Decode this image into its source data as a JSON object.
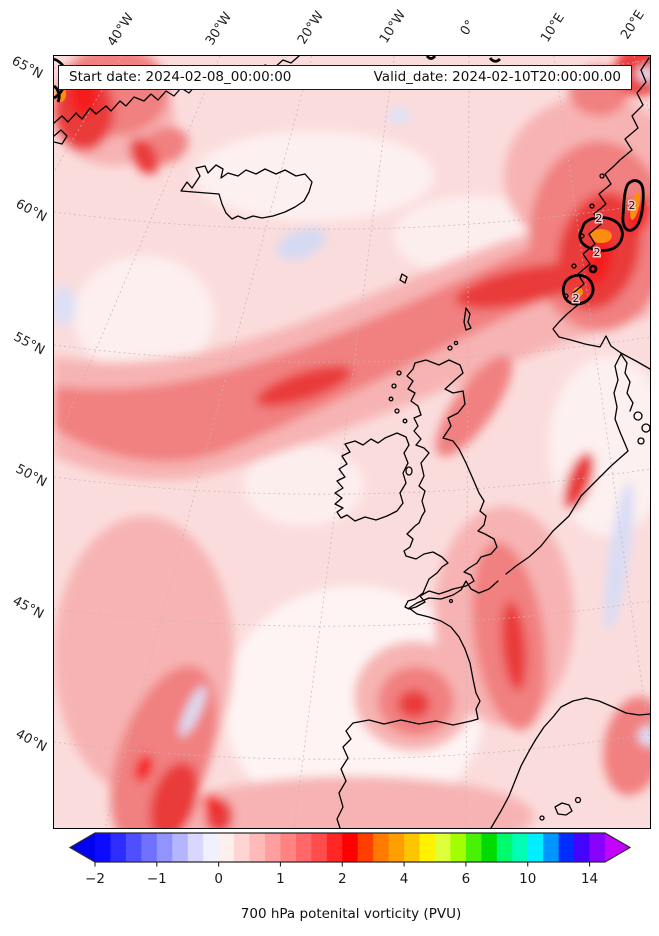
{
  "title_bar": {
    "start": "Start date: 2024-02-08_00:00:00",
    "valid": "Valid_date: 2024-02-10T20:00:00.00"
  },
  "caption": "700 hPa potenital vorticity (PVU)",
  "axes": {
    "lon_labels": [
      "40°W",
      "30°W",
      "20°W",
      "10°W",
      "0°",
      "10°E",
      "20°E"
    ],
    "lat_labels": [
      "65°N",
      "60°N",
      "55°N",
      "50°N",
      "45°N",
      "40°N"
    ]
  },
  "map": {
    "contour_value": "2",
    "contour_labels": [
      "2",
      "2",
      "2",
      "2"
    ],
    "field_colors": {
      "base_pink": "#fbdcdc",
      "pale": "#fdf0f0",
      "medium": "#f7b3b3",
      "red": "#f18080",
      "intense": "#ea3b3b",
      "brightest": "#f51f1f",
      "orange": "#fb8d0f",
      "negative_blue": "#d5d9f3",
      "coastline": "#000000",
      "graticule": "#c9b3b3"
    }
  },
  "colorbar": {
    "tick_labels": [
      "−2",
      "−1",
      "0",
      "1",
      "2",
      "4",
      "6",
      "10",
      "14"
    ],
    "tick_segment_indices": [
      0,
      4,
      8,
      12,
      16,
      20,
      24,
      28,
      32
    ],
    "segment_colors": [
      "#0b0bff",
      "#2d2dff",
      "#4f4fff",
      "#7171ff",
      "#9393ff",
      "#b5b5ff",
      "#d7d7ff",
      "#f0f0ff",
      "#ffeeee",
      "#ffd4d4",
      "#ffb9b9",
      "#ff9e9e",
      "#ff8383",
      "#ff6868",
      "#ff4d4d",
      "#ff2626",
      "#fe0000",
      "#ff3e00",
      "#ff7a00",
      "#ff9e00",
      "#ffc400",
      "#fff200",
      "#dcff3c",
      "#a0ff00",
      "#49f204",
      "#00dc00",
      "#00fa6e",
      "#00ffb4",
      "#00eeff",
      "#0096ff",
      "#002cff",
      "#4602ff",
      "#8803fb"
    ],
    "under_arrow_color": "#0202f0",
    "over_arrow_color": "#c303fb",
    "outline_color": "#2b2b2b",
    "tick_color": "#222222"
  }
}
